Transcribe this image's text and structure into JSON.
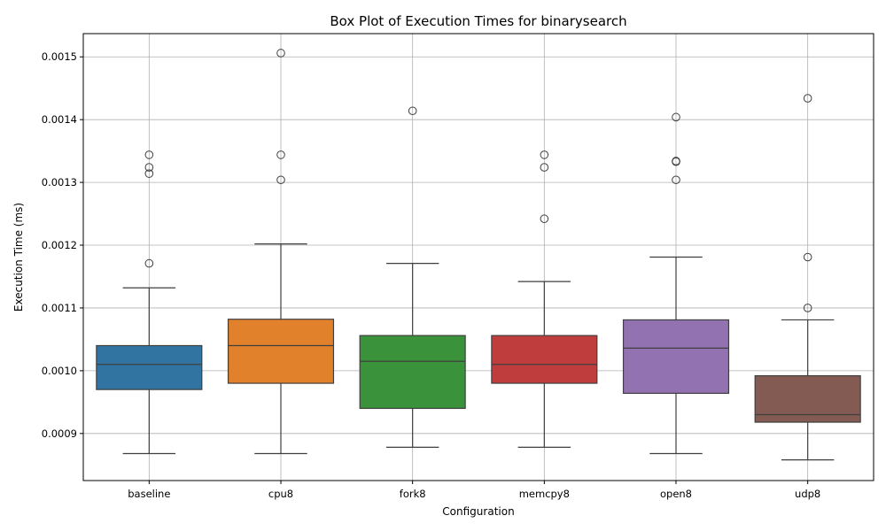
{
  "chart_data": {
    "type": "box",
    "title": "Box Plot of Execution Times for binarysearch",
    "xlabel": "Configuration",
    "ylabel": "Execution Time (ms)",
    "ylim": [
      0.000825,
      0.001537
    ],
    "yticks": [
      0.0009,
      0.001,
      0.0011,
      0.0012,
      0.0013,
      0.0014,
      0.0015
    ],
    "ytick_labels": [
      "0.0009",
      "0.0010",
      "0.0011",
      "0.0012",
      "0.0013",
      "0.0014",
      "0.0015"
    ],
    "grid": true,
    "categories": [
      "baseline",
      "cpu8",
      "fork8",
      "memcpy8",
      "open8",
      "udp8"
    ],
    "boxes": [
      {
        "label": "baseline",
        "color": "#3274a1",
        "whisker_low": 0.000868,
        "q1": 0.00097,
        "median": 0.00101,
        "q3": 0.00104,
        "whisker_high": 0.001132,
        "outliers": [
          0.001171,
          0.001314,
          0.001324,
          0.001344
        ]
      },
      {
        "label": "cpu8",
        "color": "#e1812c",
        "whisker_low": 0.000868,
        "q1": 0.00098,
        "median": 0.00104,
        "q3": 0.001082,
        "whisker_high": 0.001202,
        "outliers": [
          0.001304,
          0.001344,
          0.001506
        ]
      },
      {
        "label": "fork8",
        "color": "#3a923a",
        "whisker_low": 0.000878,
        "q1": 0.00094,
        "median": 0.001015,
        "q3": 0.001056,
        "whisker_high": 0.001171,
        "outliers": [
          0.001414
        ]
      },
      {
        "label": "memcpy8",
        "color": "#c03d3e",
        "whisker_low": 0.000878,
        "q1": 0.00098,
        "median": 0.00101,
        "q3": 0.001056,
        "whisker_high": 0.001142,
        "outliers": [
          0.001242,
          0.001324,
          0.001344
        ]
      },
      {
        "label": "open8",
        "color": "#9372b2",
        "whisker_low": 0.000868,
        "q1": 0.000964,
        "median": 0.001036,
        "q3": 0.001081,
        "whisker_high": 0.001181,
        "outliers": [
          0.001304,
          0.001333,
          0.001334,
          0.001404
        ]
      },
      {
        "label": "udp8",
        "color": "#845b53",
        "whisker_low": 0.000858,
        "q1": 0.000918,
        "median": 0.00093,
        "q3": 0.000992,
        "whisker_high": 0.001081,
        "outliers": [
          0.0011,
          0.001181,
          0.001434
        ]
      }
    ]
  }
}
